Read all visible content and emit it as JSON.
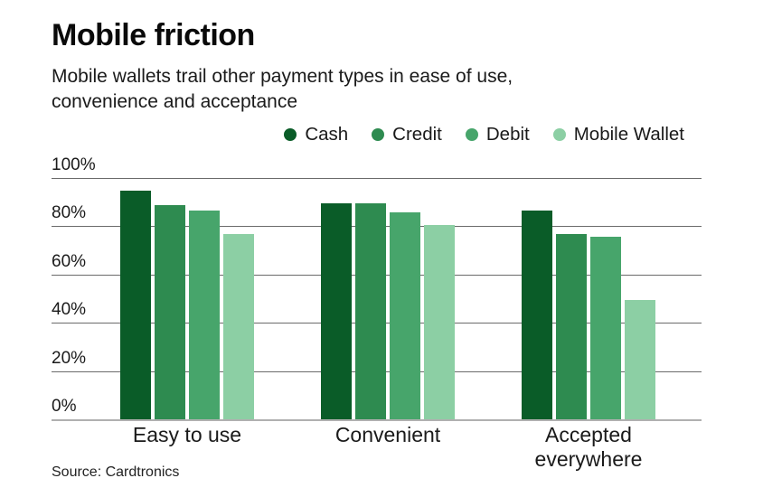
{
  "title": "Mobile friction",
  "subtitle_lines": [
    "Mobile wallets trail other payment types in ease of use,",
    "convenience and acceptance"
  ],
  "source": "Source: Cardtronics",
  "colors": {
    "cash": "#0a5c28",
    "credit": "#2e8b50",
    "debit": "#47a56b",
    "mobile_wallet": "#8ccfa4",
    "gridline": "#6b6b6b",
    "baseline": "#b0b0b0",
    "text": "#1a1a1a"
  },
  "chart_data": {
    "type": "bar",
    "title": "Mobile friction",
    "subtitle": "Mobile wallets trail other payment types in ease of use, convenience and acceptance",
    "categories": [
      "Easy to use",
      "Convenient",
      "Accepted everywhere"
    ],
    "series": [
      {
        "name": "Cash",
        "color": "#0a5c28",
        "values": [
          95,
          90,
          87
        ]
      },
      {
        "name": "Credit",
        "color": "#2e8b50",
        "values": [
          89,
          90,
          77
        ]
      },
      {
        "name": "Debit",
        "color": "#47a56b",
        "values": [
          87,
          86,
          76
        ]
      },
      {
        "name": "Mobile Wallet",
        "color": "#8ccfa4",
        "values": [
          77,
          81,
          50
        ]
      }
    ],
    "xlabel": "",
    "ylabel": "",
    "ylim": [
      0,
      100
    ],
    "yticks": [
      {
        "label": "100%",
        "value": 100
      },
      {
        "label": "80%",
        "value": 80
      },
      {
        "label": "60%",
        "value": 60
      },
      {
        "label": "40%",
        "value": 40
      },
      {
        "label": "20%",
        "value": 20
      },
      {
        "label": "0%",
        "value": 0
      }
    ],
    "grid": true,
    "legend_position": "top"
  }
}
